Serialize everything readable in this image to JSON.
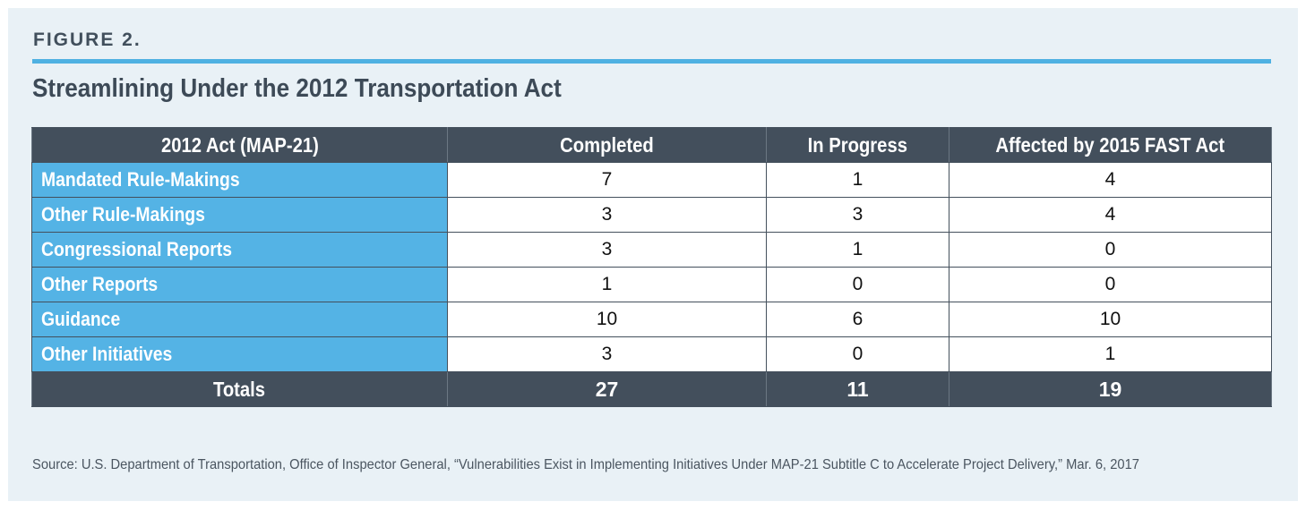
{
  "figure": {
    "label": "FIGURE 2.",
    "title": "Streamlining Under the 2012 Transportation Act",
    "source": "Source: U.S. Department of Transportation, Office of Inspector General, “Vulnerabilities Exist in Implementing Initiatives Under MAP-21 Subtitle C to Accelerate Project Delivery,” Mar. 6, 2017"
  },
  "colors": {
    "header_bg": "#434f5c",
    "row_label_bg": "#54b3e5",
    "accent_rule": "#4fb1e2",
    "panel_bg": "#e9f1f6"
  },
  "chart_data": {
    "type": "table",
    "title": "Streamlining Under the 2012 Transportation Act",
    "columns": [
      "2012 Act (MAP-21)",
      "Completed",
      "In Progress",
      "Affected by 2015 FAST Act"
    ],
    "rows": [
      {
        "label": "Mandated Rule-Makings",
        "values": [
          "7",
          "1",
          "4"
        ]
      },
      {
        "label": "Other Rule-Makings",
        "values": [
          "3",
          "3",
          "4"
        ]
      },
      {
        "label": "Congressional Reports",
        "values": [
          "3",
          "1",
          "0"
        ]
      },
      {
        "label": "Other Reports",
        "values": [
          "1",
          "0",
          "0"
        ]
      },
      {
        "label": "Guidance",
        "values": [
          "10",
          "6",
          "10"
        ]
      },
      {
        "label": "Other Initiatives",
        "values": [
          "3",
          "0",
          "1"
        ]
      }
    ],
    "totals": {
      "label": "Totals",
      "values": [
        "27",
        "11",
        "19"
      ]
    }
  }
}
